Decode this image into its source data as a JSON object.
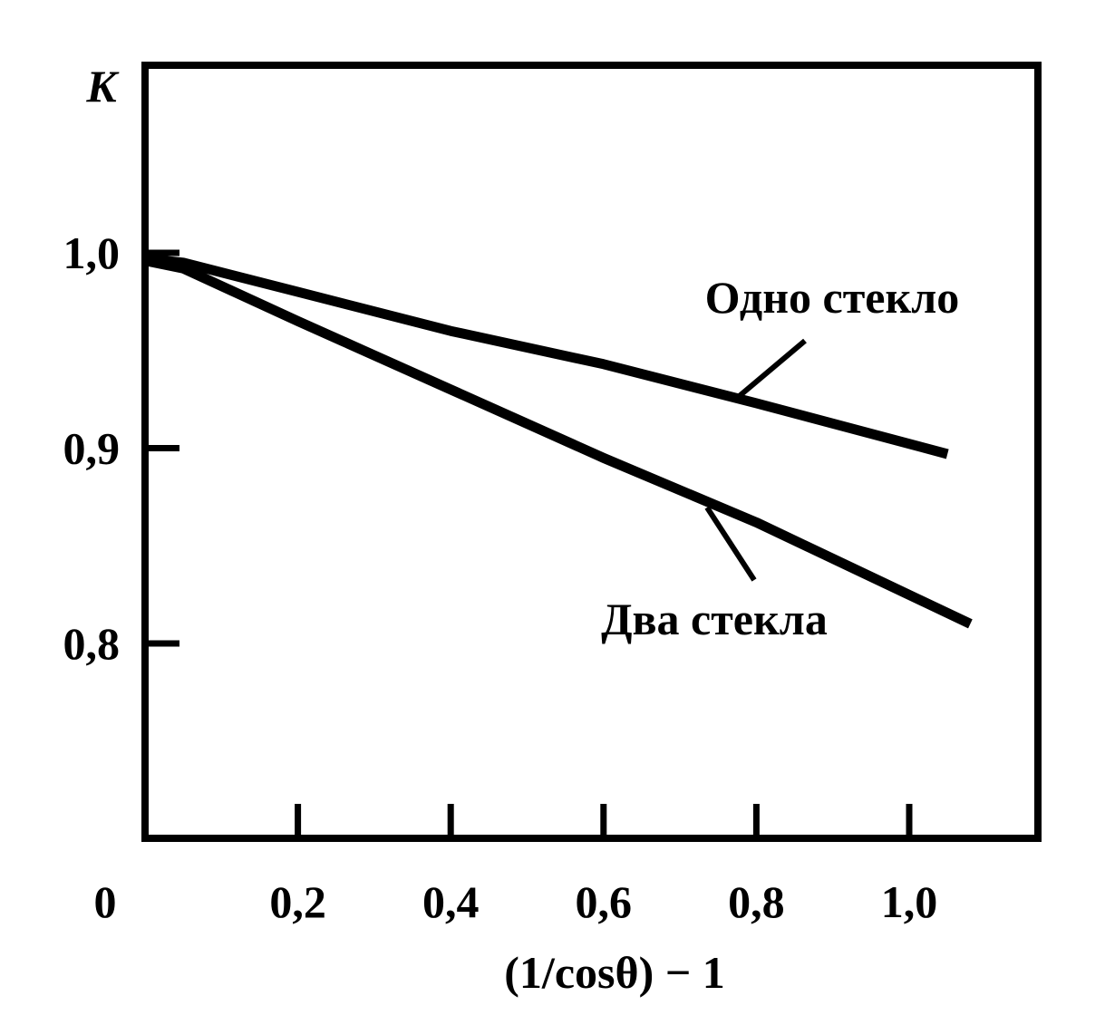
{
  "chart_data": {
    "type": "line",
    "title": "",
    "xlabel": "(1/cosθ) − 1",
    "ylabel": "K",
    "xlim": [
      0,
      1.15
    ],
    "ylim": [
      0.7,
      1.1
    ],
    "origin_label": "0",
    "x_ticks": [
      {
        "value": 0.2,
        "label": "0,2"
      },
      {
        "value": 0.4,
        "label": "0,4"
      },
      {
        "value": 0.6,
        "label": "0,6"
      },
      {
        "value": 0.8,
        "label": "0,8"
      },
      {
        "value": 1.0,
        "label": "1,0"
      }
    ],
    "y_ticks": [
      {
        "value": 1.0,
        "label": "1,0"
      },
      {
        "value": 0.9,
        "label": "0,9"
      },
      {
        "value": 0.8,
        "label": "0,8"
      }
    ],
    "grid": false,
    "legend": "none",
    "series": [
      {
        "name": "Одно стекло",
        "x": [
          0.0,
          0.05,
          0.2,
          0.4,
          0.6,
          0.8,
          1.05
        ],
        "y": [
          0.997,
          0.995,
          0.98,
          0.96,
          0.943,
          0.923,
          0.897
        ]
      },
      {
        "name": "Два стекла",
        "x": [
          0.0,
          0.05,
          0.2,
          0.4,
          0.6,
          0.8,
          1.08
        ],
        "y": [
          0.996,
          0.992,
          0.965,
          0.93,
          0.895,
          0.862,
          0.81
        ]
      }
    ],
    "colors": {
      "line": "#000000",
      "background": "#ffffff"
    }
  }
}
